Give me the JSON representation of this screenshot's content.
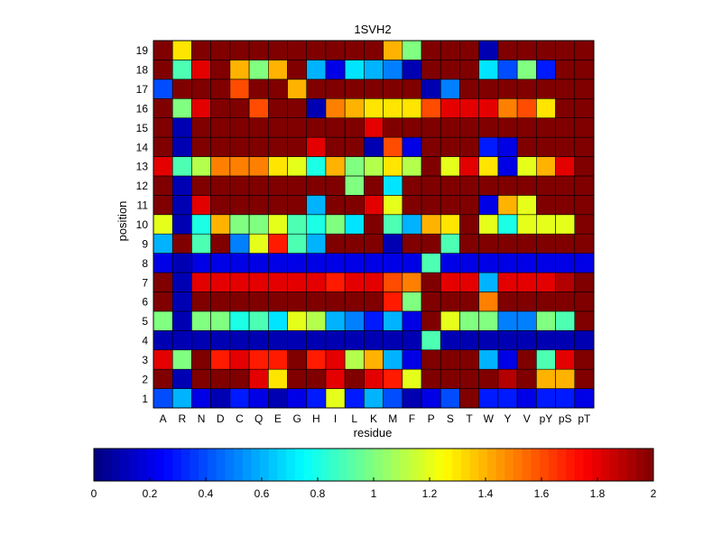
{
  "chart_data": {
    "type": "heatmap",
    "title": "1SVH2",
    "xlabel": "residue",
    "ylabel": "position",
    "x_categories": [
      "A",
      "R",
      "N",
      "D",
      "C",
      "Q",
      "E",
      "G",
      "H",
      "I",
      "L",
      "K",
      "M",
      "F",
      "P",
      "S",
      "T",
      "W",
      "Y",
      "V",
      "pY",
      "pS",
      "pT"
    ],
    "y_categories": [
      "1",
      "2",
      "3",
      "4",
      "5",
      "6",
      "7",
      "8",
      "9",
      "10",
      "11",
      "12",
      "13",
      "14",
      "15",
      "16",
      "17",
      "18",
      "19"
    ],
    "rows": [
      [
        0.4,
        0.6,
        0.2,
        0.1,
        0.3,
        0.2,
        0.1,
        0.2,
        0.3,
        1.2,
        0.3,
        0.6,
        0.4,
        0.1,
        0.2,
        0.4,
        2.0,
        0.3,
        0.3,
        0.2,
        0.3,
        0.3,
        0.2
      ],
      [
        2.0,
        0.1,
        2.0,
        2.0,
        2.0,
        1.8,
        1.3,
        2.0,
        2.0,
        1.8,
        2.0,
        1.8,
        1.7,
        1.2,
        2.0,
        2.0,
        2.0,
        2.0,
        1.9,
        2.0,
        1.4,
        1.4,
        2.0
      ],
      [
        1.8,
        1.0,
        2.0,
        1.7,
        1.8,
        1.7,
        1.7,
        2.0,
        1.7,
        1.8,
        1.1,
        1.4,
        0.6,
        0.2,
        2.0,
        2.0,
        2.0,
        0.6,
        0.2,
        2.0,
        0.9,
        1.8,
        2.0
      ],
      [
        0.1,
        0.1,
        0.1,
        0.1,
        0.1,
        0.1,
        0.1,
        0.1,
        0.1,
        0.1,
        0.1,
        0.1,
        0.1,
        0.1,
        0.9,
        0.1,
        0.1,
        0.1,
        0.1,
        0.1,
        0.1,
        0.1,
        0.1
      ],
      [
        1.0,
        0.1,
        1.0,
        1.0,
        0.8,
        0.9,
        0.7,
        1.2,
        1.1,
        0.6,
        0.5,
        0.3,
        0.6,
        0.2,
        2.0,
        1.2,
        1.0,
        1.0,
        0.5,
        0.5,
        1.0,
        0.9,
        2.0
      ],
      [
        2.0,
        0.1,
        2.0,
        2.0,
        2.0,
        2.0,
        2.0,
        2.0,
        2.0,
        2.0,
        2.0,
        2.0,
        1.7,
        1.0,
        2.0,
        2.0,
        2.0,
        1.5,
        2.0,
        2.0,
        2.0,
        2.0,
        2.0
      ],
      [
        2.0,
        0.1,
        1.8,
        1.8,
        1.8,
        1.8,
        1.8,
        1.8,
        1.8,
        1.7,
        1.8,
        1.8,
        1.6,
        1.5,
        2.0,
        1.8,
        1.8,
        0.6,
        1.8,
        1.8,
        1.8,
        1.9,
        2.0
      ],
      [
        0.2,
        0.1,
        0.2,
        0.2,
        0.2,
        0.2,
        0.2,
        0.2,
        0.2,
        0.2,
        0.2,
        0.2,
        0.2,
        0.2,
        0.9,
        0.2,
        0.2,
        0.2,
        0.2,
        0.2,
        0.2,
        0.2,
        0.2
      ],
      [
        0.6,
        2.0,
        0.9,
        2.0,
        0.5,
        1.2,
        1.7,
        0.9,
        0.6,
        2.0,
        2.0,
        2.0,
        0.1,
        2.0,
        2.0,
        0.9,
        2.0,
        2.0,
        2.0,
        2.0,
        2.0,
        2.0,
        2.0
      ],
      [
        1.2,
        0.1,
        0.8,
        1.4,
        1.0,
        1.0,
        1.2,
        0.9,
        0.8,
        1.0,
        0.7,
        2.0,
        0.9,
        0.6,
        1.4,
        1.3,
        2.0,
        1.2,
        0.8,
        1.2,
        1.2,
        1.2,
        2.0
      ],
      [
        2.0,
        0.1,
        1.8,
        2.0,
        2.0,
        2.0,
        2.0,
        2.0,
        0.6,
        2.0,
        2.0,
        1.8,
        1.2,
        2.0,
        2.0,
        2.0,
        2.0,
        0.2,
        1.4,
        1.2,
        2.0,
        2.0,
        2.0
      ],
      [
        2.0,
        0.1,
        2.0,
        2.0,
        2.0,
        2.0,
        2.0,
        2.0,
        2.0,
        2.0,
        1.0,
        2.0,
        0.7,
        2.0,
        2.0,
        2.0,
        2.0,
        2.0,
        2.0,
        2.0,
        2.0,
        2.0,
        2.0
      ],
      [
        1.8,
        0.9,
        1.1,
        1.5,
        1.5,
        1.5,
        1.3,
        1.2,
        0.8,
        1.4,
        1.0,
        1.1,
        1.3,
        1.1,
        2.0,
        1.2,
        1.8,
        1.3,
        0.2,
        1.2,
        1.4,
        1.8,
        2.0
      ],
      [
        2.0,
        0.1,
        2.0,
        2.0,
        2.0,
        2.0,
        2.0,
        2.0,
        1.8,
        2.0,
        2.0,
        0.1,
        1.6,
        0.2,
        2.0,
        2.0,
        2.0,
        0.3,
        0.2,
        2.0,
        2.0,
        2.0,
        2.0
      ],
      [
        2.0,
        0.1,
        2.0,
        2.0,
        2.0,
        2.0,
        2.0,
        2.0,
        2.0,
        2.0,
        2.0,
        1.8,
        2.0,
        2.0,
        2.0,
        2.0,
        2.0,
        2.0,
        2.0,
        2.0,
        2.0,
        2.0,
        2.0
      ],
      [
        2.0,
        1.0,
        1.8,
        2.0,
        2.0,
        1.6,
        2.0,
        2.0,
        0.1,
        1.5,
        1.4,
        1.3,
        1.3,
        1.3,
        1.6,
        1.8,
        1.8,
        1.8,
        1.5,
        1.6,
        1.3,
        2.0,
        2.0
      ],
      [
        0.4,
        2.0,
        2.0,
        2.0,
        1.6,
        2.0,
        2.0,
        1.4,
        2.0,
        2.0,
        2.0,
        2.0,
        2.0,
        2.0,
        0.1,
        0.5,
        2.0,
        2.0,
        2.0,
        2.0,
        2.0,
        2.0,
        2.0
      ],
      [
        2.0,
        0.9,
        1.8,
        2.0,
        1.4,
        1.0,
        1.4,
        2.0,
        0.6,
        0.2,
        0.7,
        0.6,
        0.5,
        0.1,
        2.0,
        2.0,
        2.0,
        0.7,
        0.4,
        1.0,
        0.3,
        2.0,
        2.0
      ],
      [
        2.0,
        1.3,
        2.0,
        2.0,
        2.0,
        2.0,
        2.0,
        2.0,
        2.0,
        2.0,
        2.0,
        2.0,
        1.4,
        1.0,
        2.0,
        2.0,
        2.0,
        0.1,
        2.0,
        2.0,
        2.0,
        2.0,
        2.0
      ]
    ],
    "colorbar": {
      "min": 0,
      "max": 2,
      "ticks": [
        "0",
        "0.2",
        "0.4",
        "0.6",
        "0.8",
        "1",
        "1.2",
        "1.4",
        "1.6",
        "1.8",
        "2"
      ],
      "orientation": "horizontal"
    },
    "colormap": "jet",
    "grid": true
  }
}
